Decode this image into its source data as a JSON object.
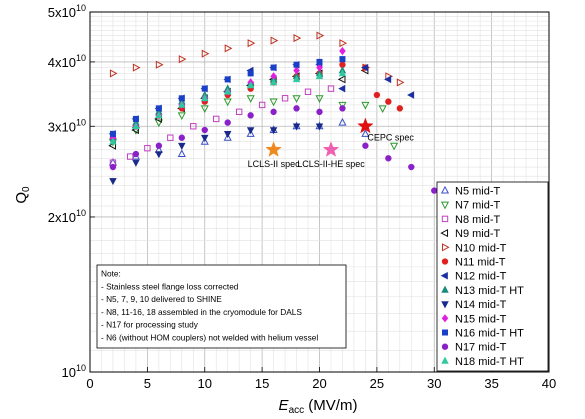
{
  "chart_data": {
    "type": "scatter",
    "xlabel_main": "E",
    "xlabel_sub": "acc",
    "xlabel_unit": " (MV/m)",
    "ylabel_main": "Q",
    "ylabel_sub": "0",
    "xlim": [
      0,
      40
    ],
    "ylim": [
      10000000000.0,
      50000000000.0
    ],
    "yscale": "log",
    "grid": true,
    "legend_position": "right",
    "x_ticks": [
      "0",
      "5",
      "10",
      "15",
      "20",
      "25",
      "30",
      "35",
      "40"
    ],
    "y_ticks": [
      {
        "value": 10000000000.0,
        "mant": "10",
        "exp": "10",
        "sci": false
      },
      {
        "value": 20000000000.0,
        "mant": "2x10",
        "exp": "10",
        "sci": true
      },
      {
        "value": 30000000000.0,
        "mant": "3x10",
        "exp": "10",
        "sci": true
      },
      {
        "value": 40000000000.0,
        "mant": "4x10",
        "exp": "10",
        "sci": true
      },
      {
        "value": 50000000000.0,
        "mant": "5x10",
        "exp": "10",
        "sci": true
      }
    ],
    "series": [
      {
        "name": "N5 mid-T",
        "marker": "tri-up",
        "filled": false,
        "color": "#3b50c8",
        "x": [
          2,
          4,
          6,
          8,
          10,
          12,
          14,
          16,
          18,
          20,
          22,
          24
        ],
        "y": [
          25500000000.0,
          26200000000.0,
          27000000000.0,
          26500000000.0,
          28000000000.0,
          28500000000.0,
          29000000000.0,
          29500000000.0,
          30000000000.0,
          30000000000.0,
          30500000000.0,
          29000000000.0
        ]
      },
      {
        "name": "N7 mid-T",
        "marker": "tri-down",
        "filled": false,
        "color": "#2a9a2a",
        "x": [
          2,
          4,
          6,
          8,
          10,
          12,
          14,
          16,
          18,
          20,
          22,
          24,
          25.5,
          26.5
        ],
        "y": [
          28000000000.0,
          29500000000.0,
          30500000000.0,
          31500000000.0,
          32500000000.0,
          33500000000.0,
          34000000000.0,
          33500000000.0,
          34000000000.0,
          34000000000.0,
          33000000000.0,
          33000000000.0,
          32500000000.0,
          27500000000.0
        ]
      },
      {
        "name": "N8 mid-T",
        "marker": "square",
        "filled": false,
        "color": "#c040c0",
        "x": [
          2,
          3.5,
          5,
          7,
          9,
          11,
          13,
          15,
          17,
          19,
          21
        ],
        "y": [
          25500000000.0,
          26200000000.0,
          27200000000.0,
          28500000000.0,
          30000000000.0,
          31000000000.0,
          32000000000.0,
          33000000000.0,
          34000000000.0,
          35000000000.0,
          35500000000.0
        ]
      },
      {
        "name": "N9 mid-T",
        "marker": "tri-left",
        "filled": false,
        "color": "#111111",
        "x": [
          2,
          4,
          6,
          8,
          10,
          12,
          14,
          16,
          18,
          20,
          22,
          24
        ],
        "y": [
          27500000000.0,
          29500000000.0,
          31000000000.0,
          32500000000.0,
          34000000000.0,
          35000000000.0,
          36000000000.0,
          37000000000.0,
          37500000000.0,
          38000000000.0,
          37000000000.0,
          38500000000.0
        ]
      },
      {
        "name": "N10 mid-T",
        "marker": "tri-right",
        "filled": false,
        "color": "#c03020",
        "x": [
          2,
          4,
          6,
          8,
          10,
          12,
          14,
          16,
          18,
          20,
          22,
          24,
          26,
          27
        ],
        "y": [
          38000000000.0,
          39000000000.0,
          39500000000.0,
          40500000000.0,
          41500000000.0,
          42500000000.0,
          43500000000.0,
          44000000000.0,
          44500000000.0,
          45000000000.0,
          43500000000.0,
          39000000000.0,
          37500000000.0,
          36500000000.0
        ]
      },
      {
        "name": "N11 mid-T",
        "marker": "circle",
        "filled": true,
        "color": "#e02020",
        "x": [
          2,
          4,
          6,
          8,
          10,
          12,
          14,
          16,
          18,
          20,
          22,
          24,
          25,
          26,
          27
        ],
        "y": [
          28500000000.0,
          30000000000.0,
          31500000000.0,
          32500000000.0,
          33500000000.0,
          34500000000.0,
          35500000000.0,
          36500000000.0,
          37500000000.0,
          38000000000.0,
          39500000000.0,
          39000000000.0,
          34500000000.0,
          33500000000.0,
          32500000000.0
        ]
      },
      {
        "name": "N12 mid-T",
        "marker": "tri-left",
        "filled": true,
        "color": "#1a2fa0",
        "x": [
          2,
          4,
          6,
          8,
          10,
          12,
          14,
          16,
          18,
          20,
          22,
          24,
          26,
          28
        ],
        "y": [
          29000000000.0,
          31000000000.0,
          32500000000.0,
          34000000000.0,
          35500000000.0,
          37000000000.0,
          38500000000.0,
          39000000000.0,
          39500000000.0,
          39500000000.0,
          35500000000.0,
          39000000000.0,
          37000000000.0,
          34500000000.0
        ]
      },
      {
        "name": "N13 mid-T HT",
        "marker": "tri-up",
        "filled": true,
        "color": "#1a8a7a",
        "x": [
          2,
          4,
          6,
          8,
          10,
          12,
          14,
          16,
          18,
          20,
          22
        ],
        "y": [
          28500000000.0,
          30500000000.0,
          32000000000.0,
          33500000000.0,
          34500000000.0,
          35500000000.0,
          36500000000.0,
          37000000000.0,
          37500000000.0,
          38000000000.0,
          38500000000.0
        ]
      },
      {
        "name": "N14 mid-T",
        "marker": "tri-down",
        "filled": true,
        "color": "#1a2a8a",
        "x": [
          2,
          4,
          6,
          8,
          10,
          12,
          14,
          16,
          18,
          20
        ],
        "y": [
          23500000000.0,
          25500000000.0,
          26500000000.0,
          27500000000.0,
          28500000000.0,
          29000000000.0,
          29500000000.0,
          29500000000.0,
          30000000000.0,
          30000000000.0
        ]
      },
      {
        "name": "N15 mid-T",
        "marker": "diamond",
        "filled": true,
        "color": "#e020e0",
        "x": [
          2,
          4,
          6,
          8,
          10,
          12,
          14,
          16,
          18,
          20,
          22
        ],
        "y": [
          28500000000.0,
          30000000000.0,
          31500000000.0,
          33000000000.0,
          34000000000.0,
          35000000000.0,
          36500000000.0,
          37500000000.0,
          38500000000.0,
          39000000000.0,
          42000000000.0
        ]
      },
      {
        "name": "N16 mid-T HT",
        "marker": "square",
        "filled": true,
        "color": "#1a40c8",
        "x": [
          2,
          4,
          6,
          8,
          10,
          12,
          14,
          16,
          18,
          20,
          22
        ],
        "y": [
          29000000000.0,
          31000000000.0,
          32500000000.0,
          34000000000.0,
          35500000000.0,
          37000000000.0,
          38000000000.0,
          39000000000.0,
          39500000000.0,
          40000000000.0,
          40500000000.0
        ]
      },
      {
        "name": "N17 mid-T",
        "marker": "circle",
        "filled": true,
        "color": "#8a20c8",
        "x": [
          2,
          4,
          6,
          8,
          10,
          12,
          14,
          16,
          18,
          20,
          22,
          24,
          26,
          28,
          30
        ],
        "y": [
          25000000000.0,
          26500000000.0,
          27500000000.0,
          28500000000.0,
          29500000000.0,
          30500000000.0,
          31500000000.0,
          32000000000.0,
          32500000000.0,
          32000000000.0,
          32500000000.0,
          27500000000.0,
          26000000000.0,
          25000000000.0,
          22500000000.0
        ]
      },
      {
        "name": "N18 mid-T HT",
        "marker": "tri-up",
        "filled": true,
        "color": "#30c8a0",
        "x": [
          2,
          4,
          6,
          8,
          10,
          12,
          14,
          16,
          18,
          20,
          22
        ],
        "y": [
          28000000000.0,
          30000000000.0,
          31500000000.0,
          33000000000.0,
          34000000000.0,
          35000000000.0,
          36000000000.0,
          36500000000.0,
          37000000000.0,
          37500000000.0,
          38000000000.0
        ]
      }
    ],
    "specs": [
      {
        "label": "LCLS-II spec",
        "x": 16,
        "y": 27000000000.0,
        "color": "#f08a20"
      },
      {
        "label": "LCLS-II-HE spec",
        "x": 21,
        "y": 27000000000.0,
        "color": "#f060b0"
      },
      {
        "label": "CEPC spec",
        "x": 24,
        "y": 30000000000.0,
        "color": "#e01010"
      }
    ],
    "note": {
      "lines": [
        "Note:",
        "- Stainless steel flange loss corrected",
        "- N5, 7, 9, 10 delivered to SHINE",
        "- N8, 11-16, 18 assembled in the cryomodule for DALS",
        "- N17 for processing study",
        "- N6 (without HOM couplers) not welded with helium vessel"
      ]
    }
  }
}
